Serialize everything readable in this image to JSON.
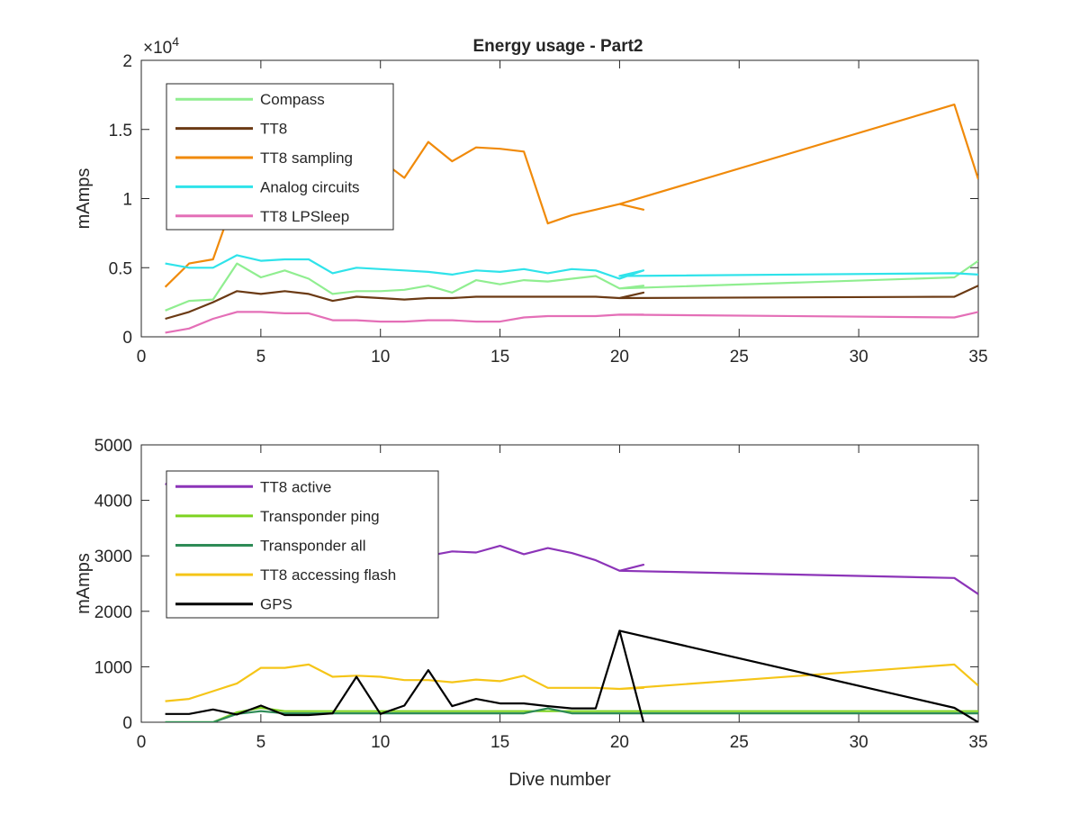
{
  "figure": {
    "title": "Energy usage - Part2"
  },
  "chart_data": [
    {
      "type": "line",
      "title": "Energy usage - Part2",
      "xlabel": "",
      "ylabel": "mAmps",
      "xlim": [
        0,
        35
      ],
      "ylim": [
        0,
        20000
      ],
      "xticks": [
        0,
        5,
        10,
        15,
        20,
        25,
        30,
        35
      ],
      "yticks": [
        0,
        5000,
        10000,
        15000,
        20000
      ],
      "ytick_labels": [
        "0",
        "0.5",
        "1",
        "1.5",
        "2"
      ],
      "y_multiplier": "×10^4",
      "grid": false,
      "legend": "top-left",
      "series": [
        {
          "name": "Compass",
          "color": "#90ee90",
          "x": [
            1,
            2,
            3,
            4,
            5,
            6,
            7,
            8,
            9,
            10,
            11,
            12,
            13,
            14,
            15,
            16,
            17,
            18,
            19,
            20,
            21,
            20,
            34,
            35
          ],
          "y": [
            1900,
            2600,
            2700,
            5300,
            4300,
            4800,
            4200,
            3100,
            3300,
            3300,
            3400,
            3700,
            3200,
            4100,
            3800,
            4100,
            4000,
            4200,
            4400,
            3500,
            3700,
            3500,
            4300,
            5500
          ]
        },
        {
          "name": "TT8",
          "color": "#6b3a14",
          "x": [
            1,
            2,
            3,
            4,
            5,
            6,
            7,
            8,
            9,
            10,
            11,
            12,
            13,
            14,
            15,
            16,
            17,
            18,
            19,
            20,
            21,
            20,
            34,
            35
          ],
          "y": [
            1300,
            1800,
            2500,
            3300,
            3100,
            3300,
            3100,
            2600,
            2900,
            2800,
            2700,
            2800,
            2800,
            2900,
            2900,
            2900,
            2900,
            2900,
            2900,
            2800,
            3200,
            2800,
            2900,
            3700
          ]
        },
        {
          "name": "TT8 sampling",
          "color": "#f08a0a",
          "x": [
            1,
            2,
            3,
            4,
            5,
            6,
            7,
            8,
            9,
            10,
            11,
            12,
            13,
            14,
            15,
            16,
            17,
            18,
            19,
            20,
            21,
            20,
            34,
            35
          ],
          "y": [
            3600,
            5300,
            5600,
            10500,
            11000,
            11500,
            11000,
            11000,
            11500,
            12800,
            11500,
            14100,
            12700,
            13700,
            13600,
            13400,
            8200,
            8800,
            9200,
            9600,
            9200,
            9600,
            16800,
            11400
          ]
        },
        {
          "name": "Analog circuits",
          "color": "#2fe3ea",
          "x": [
            1,
            2,
            3,
            4,
            5,
            6,
            7,
            8,
            9,
            10,
            11,
            12,
            13,
            14,
            15,
            16,
            17,
            18,
            19,
            20,
            21,
            20,
            34,
            35
          ],
          "y": [
            5300,
            5000,
            5000,
            5900,
            5500,
            5600,
            5600,
            4600,
            5000,
            4900,
            4800,
            4700,
            4500,
            4800,
            4700,
            4900,
            4600,
            4900,
            4800,
            4200,
            4800,
            4400,
            4600,
            4500
          ]
        },
        {
          "name": "TT8 LPSleep",
          "color": "#e46fb7",
          "x": [
            1,
            2,
            3,
            4,
            5,
            6,
            7,
            8,
            9,
            10,
            11,
            12,
            13,
            14,
            15,
            16,
            17,
            18,
            19,
            20,
            21,
            20,
            34,
            35
          ],
          "y": [
            300,
            600,
            1300,
            1800,
            1800,
            1700,
            1700,
            1200,
            1200,
            1100,
            1100,
            1200,
            1200,
            1100,
            1100,
            1400,
            1500,
            1500,
            1500,
            1600,
            1600,
            1600,
            1400,
            1800
          ]
        }
      ]
    },
    {
      "type": "line",
      "title": "",
      "xlabel": "Dive number",
      "ylabel": "mAmps",
      "xlim": [
        0,
        35
      ],
      "ylim": [
        0,
        5000
      ],
      "xticks": [
        0,
        5,
        10,
        15,
        20,
        25,
        30,
        35
      ],
      "yticks": [
        0,
        1000,
        2000,
        3000,
        4000,
        5000
      ],
      "ytick_labels": [
        "0",
        "1000",
        "2000",
        "3000",
        "4000",
        "5000"
      ],
      "grid": false,
      "legend": "top-left",
      "series": [
        {
          "name": "TT8 active",
          "color": "#8c34b8",
          "x": [
            1,
            2,
            3,
            4,
            5,
            6,
            7,
            8,
            9,
            10,
            11,
            12,
            13,
            14,
            15,
            16,
            17,
            18,
            19,
            20,
            21,
            20,
            34,
            35
          ],
          "y": [
            4300,
            4100,
            4000,
            3950,
            3900,
            3800,
            3700,
            3300,
            3300,
            3250,
            3200,
            3000,
            3080,
            3060,
            3180,
            3030,
            3140,
            3050,
            2920,
            2730,
            2840,
            2730,
            2600,
            2310
          ]
        },
        {
          "name": "Transponder ping",
          "color": "#7ed321",
          "x": [
            1,
            2,
            3,
            4,
            5,
            6,
            7,
            8,
            9,
            10,
            11,
            12,
            13,
            14,
            15,
            16,
            17,
            18,
            19,
            20,
            21,
            20,
            34,
            35
          ],
          "y": [
            0,
            0,
            0,
            180,
            260,
            200,
            200,
            200,
            200,
            200,
            200,
            200,
            200,
            200,
            200,
            200,
            200,
            200,
            200,
            200,
            200,
            200,
            200,
            200
          ]
        },
        {
          "name": "Transponder all",
          "color": "#2e8b57",
          "x": [
            1,
            2,
            3,
            4,
            5,
            6,
            7,
            8,
            9,
            10,
            11,
            12,
            13,
            14,
            15,
            16,
            17,
            18,
            19,
            20,
            21,
            20,
            34,
            35
          ],
          "y": [
            0,
            0,
            0,
            150,
            200,
            160,
            160,
            160,
            160,
            160,
            160,
            160,
            160,
            160,
            160,
            160,
            250,
            160,
            160,
            160,
            160,
            160,
            160,
            160
          ]
        },
        {
          "name": "TT8 accessing flash",
          "color": "#f5c518",
          "x": [
            1,
            2,
            3,
            4,
            5,
            6,
            7,
            8,
            9,
            10,
            11,
            12,
            13,
            14,
            15,
            16,
            17,
            18,
            19,
            20,
            21,
            20,
            34,
            35
          ],
          "y": [
            380,
            420,
            560,
            700,
            980,
            980,
            1040,
            820,
            840,
            820,
            760,
            760,
            720,
            770,
            740,
            840,
            620,
            620,
            620,
            600,
            620,
            600,
            1040,
            660
          ]
        },
        {
          "name": "GPS",
          "color": "#000000",
          "x": [
            1,
            2,
            3,
            4,
            5,
            6,
            7,
            8,
            9,
            10,
            11,
            12,
            13,
            14,
            15,
            16,
            17,
            18,
            19,
            20,
            21,
            20,
            34,
            35
          ],
          "y": [
            150,
            150,
            230,
            140,
            300,
            130,
            130,
            160,
            820,
            150,
            300,
            940,
            290,
            420,
            340,
            340,
            290,
            250,
            250,
            1650,
            0,
            1650,
            260,
            0
          ]
        }
      ]
    }
  ]
}
